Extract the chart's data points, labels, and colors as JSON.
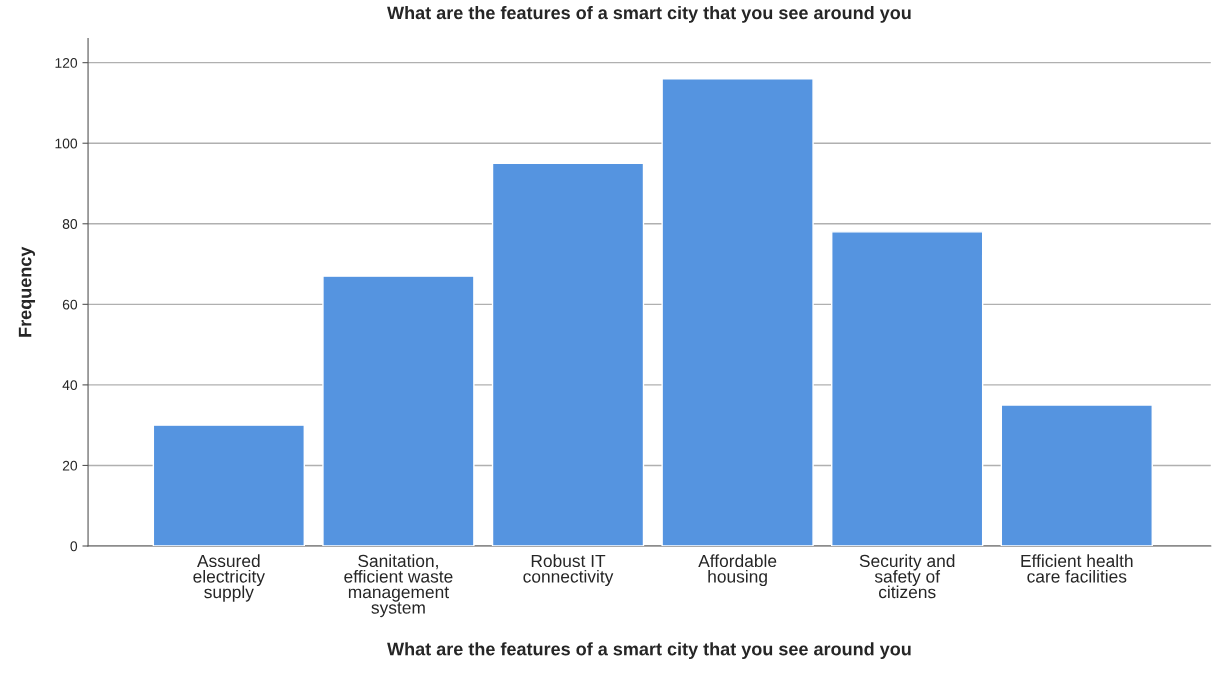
{
  "chart_data": {
    "type": "bar",
    "title": "What are the features of a smart city that you see around you",
    "xlabel": "What are the features of a smart city that you see around you",
    "ylabel": "Frequency",
    "categories": [
      "Assured\nelectricity\nsupply",
      "Sanitation,\nefficient waste\nmanagement\nsystem",
      "Robust IT\nconnectivity",
      "Affordable\nhousing",
      "Security and\nsafety of\ncitizens",
      "Efficient health\ncare facilities"
    ],
    "values": [
      30,
      67,
      95,
      116,
      78,
      35
    ],
    "color": "#5594e0",
    "ylim": [
      0,
      126
    ],
    "yticks": [
      0,
      20,
      40,
      60,
      80,
      100,
      120
    ],
    "grid": "y",
    "legend": false
  }
}
